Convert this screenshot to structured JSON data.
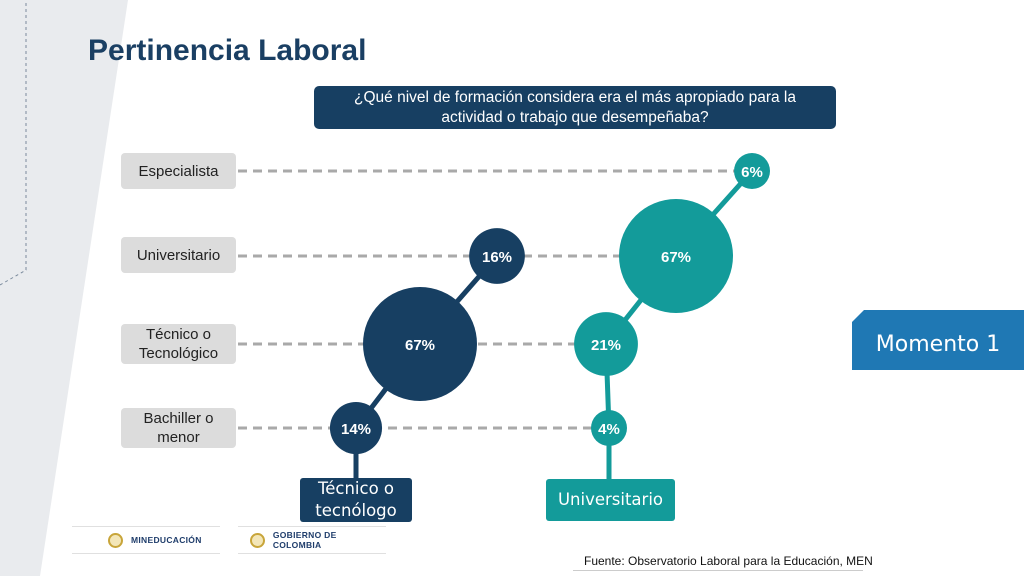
{
  "slide": {
    "title": "Pertinencia Laboral",
    "question": "¿Qué nivel de formación considera era el más apropiado para la actividad o trabajo que desempeñaba?",
    "momento_label": "Momento 1",
    "source": "Fuente: Observatorio Laboral para la Educación, MEN",
    "logos": [
      "MINEDUCACIÓN",
      "GOBIERNO DE COLOMBIA"
    ]
  },
  "chart_data": {
    "type": "bubble",
    "title": "",
    "categories": [
      "Especialista",
      "Universitario",
      "Técnico o Tecnológico",
      "Bachiller o menor"
    ],
    "category_labels": [
      [
        "Especialista"
      ],
      [
        "Universitario"
      ],
      [
        "Técnico o",
        "Tecnológico"
      ],
      [
        "Bachiller o",
        "menor"
      ]
    ],
    "series": [
      {
        "name": "Técnico o tecnólogo",
        "name_lines": [
          "Técnico o",
          "tecnólogo"
        ],
        "color": "#173f62",
        "values": [
          null,
          16,
          67,
          14
        ],
        "labels": [
          "",
          "16%",
          "67%",
          "14%"
        ]
      },
      {
        "name": "Universitario",
        "name_lines": [
          "Universitario"
        ],
        "color": "#139b9a",
        "values": [
          6,
          67,
          21,
          4
        ],
        "labels": [
          "6%",
          "67%",
          "21%",
          "4%"
        ]
      }
    ]
  },
  "colors": {
    "title": "#1a3f63",
    "dark_navy": "#173f62",
    "teal": "#139b9a",
    "momento_blue": "#1f78b4",
    "label_gray": "#dcdcdc",
    "dash_gray": "#a9a9a9"
  }
}
